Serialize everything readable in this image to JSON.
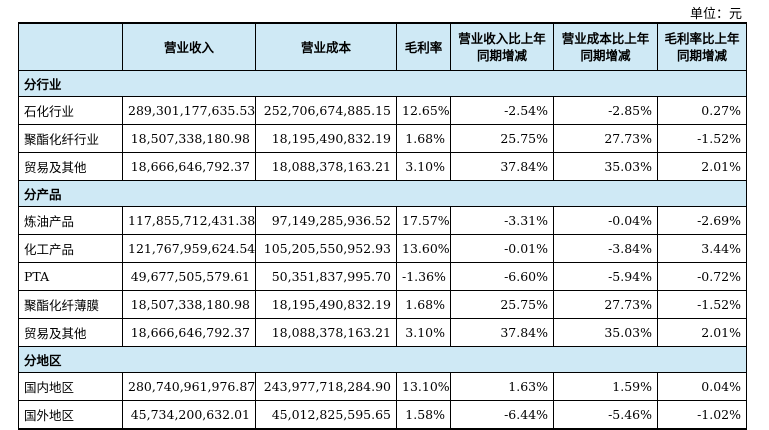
{
  "unit_label": "单位：元",
  "headers": [
    "",
    "营业收入",
    "营业成本",
    "毛利率",
    "营业收入比上年同期增减",
    "营业成本比上年同期增减",
    "毛利率比上年同期增减"
  ],
  "sections": [
    {
      "title": "分行业",
      "rows": [
        [
          "石化行业",
          "289,301,177,635.53",
          "252,706,674,885.15",
          "12.65%",
          "-2.54%",
          "-2.85%",
          "0.27%"
        ],
        [
          "聚酯化纤行业",
          "18,507,338,180.98",
          "18,195,490,832.19",
          "1.68%",
          "25.75%",
          "27.73%",
          "-1.52%"
        ],
        [
          "贸易及其他",
          "18,666,646,792.37",
          "18,088,378,163.21",
          "3.10%",
          "37.84%",
          "35.03%",
          "2.01%"
        ]
      ]
    },
    {
      "title": "分产品",
      "rows": [
        [
          "炼油产品",
          "117,855,712,431.38",
          "97,149,285,936.52",
          "17.57%",
          "-3.31%",
          "-0.04%",
          "-2.69%"
        ],
        [
          "化工产品",
          "121,767,959,624.54",
          "105,205,550,952.93",
          "13.60%",
          "-0.01%",
          "-3.84%",
          "3.44%"
        ],
        [
          "PTA",
          "49,677,505,579.61",
          "50,351,837,995.70",
          "-1.36%",
          "-6.60%",
          "-5.94%",
          "-0.72%"
        ],
        [
          "聚酯化纤薄膜",
          "18,507,338,180.98",
          "18,195,490,832.19",
          "1.68%",
          "25.75%",
          "27.73%",
          "-1.52%"
        ],
        [
          "贸易及其他",
          "18,666,646,792.37",
          "18,088,378,163.21",
          "3.10%",
          "37.84%",
          "35.03%",
          "2.01%"
        ]
      ]
    },
    {
      "title": "分地区",
      "rows": [
        [
          "国内地区",
          "280,740,961,976.87",
          "243,977,718,284.90",
          "13.10%",
          "1.63%",
          "1.59%",
          "0.04%"
        ],
        [
          "国外地区",
          "45,734,200,632.01",
          "45,012,825,595.65",
          "1.58%",
          "-6.44%",
          "-5.46%",
          "-1.02%"
        ]
      ]
    }
  ]
}
